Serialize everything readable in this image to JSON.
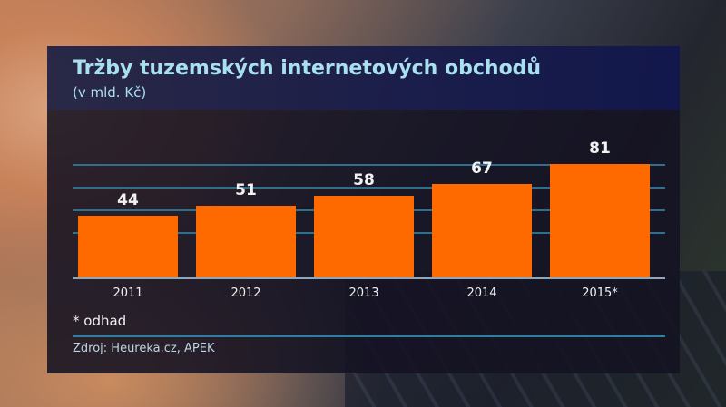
{
  "header": {
    "title": "Tržby tuzemských internetových obchodů",
    "subtitle": "(v mld. Kč)"
  },
  "footer": {
    "note": "* odhad",
    "source": "Zdroj: Heureka.cz, APEK"
  },
  "colors": {
    "bar": "#ff6a00",
    "title": "#a9e0f0",
    "gridline": "#2e6f8c"
  },
  "chart_data": {
    "type": "bar",
    "title": "Tržby tuzemských internetových obchodů",
    "subtitle": "(v mld. Kč)",
    "categories": [
      "2011",
      "2012",
      "2013",
      "2014",
      "2015*"
    ],
    "values": [
      44,
      51,
      58,
      67,
      81
    ],
    "labels": [
      "44",
      "51",
      "58",
      "67",
      "81"
    ],
    "xlabel": "",
    "ylabel": "mld. Kč",
    "ylim": [
      0,
      100
    ],
    "grid": true,
    "legend": null,
    "annotations": [
      "* odhad"
    ],
    "source": "Zdroj: Heureka.cz, APEK"
  }
}
